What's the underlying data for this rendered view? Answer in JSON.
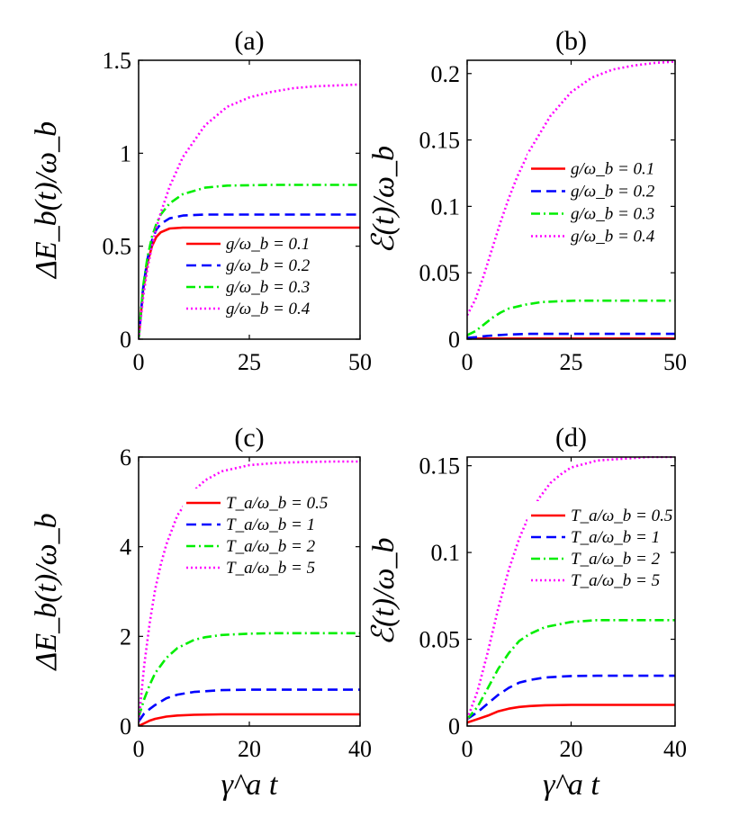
{
  "chart_data": [
    {
      "type": "line",
      "title": "(a)",
      "ylabel": "ΔE_b(t)/ω_b",
      "xlabel": "",
      "xlim": [
        0,
        50
      ],
      "ylim": [
        0,
        1.5
      ],
      "xticks": [
        "0",
        "25",
        "50"
      ],
      "yticks": [
        "0",
        "0.5",
        "1",
        "1.5"
      ],
      "legend_position": "bottom-right",
      "series": [
        {
          "name": "g/ω_b = 0.1",
          "color": "#ff0000",
          "dash": "solid",
          "x": [
            0,
            1,
            2,
            3,
            4,
            5,
            7,
            10,
            15,
            20,
            30,
            40,
            50
          ],
          "y": [
            0,
            0.26,
            0.41,
            0.5,
            0.55,
            0.575,
            0.595,
            0.6,
            0.6,
            0.6,
            0.6,
            0.6,
            0.6
          ]
        },
        {
          "name": "g/ω_b = 0.2",
          "color": "#0000ff",
          "dash": "dashed",
          "x": [
            0,
            1,
            2,
            3,
            4,
            5,
            7,
            10,
            15,
            20,
            30,
            40,
            50
          ],
          "y": [
            0,
            0.27,
            0.43,
            0.53,
            0.59,
            0.62,
            0.65,
            0.665,
            0.67,
            0.67,
            0.67,
            0.67,
            0.67
          ]
        },
        {
          "name": "g/ω_b = 0.3",
          "color": "#00ee00",
          "dash": "dashdot",
          "x": [
            0,
            1,
            2,
            3,
            4,
            5,
            7,
            10,
            15,
            20,
            30,
            40,
            50
          ],
          "y": [
            0,
            0.28,
            0.44,
            0.55,
            0.62,
            0.67,
            0.73,
            0.78,
            0.815,
            0.826,
            0.83,
            0.83,
            0.83
          ]
        },
        {
          "name": "g/ω_b = 0.4",
          "color": "#ff00ff",
          "dash": "dotted",
          "x": [
            0,
            1,
            2,
            3,
            4,
            5,
            7,
            10,
            15,
            20,
            25,
            30,
            35,
            40,
            45,
            50
          ],
          "y": [
            0,
            0.22,
            0.38,
            0.5,
            0.6,
            0.68,
            0.82,
            0.98,
            1.15,
            1.25,
            1.3,
            1.33,
            1.35,
            1.36,
            1.365,
            1.37
          ]
        }
      ]
    },
    {
      "type": "line",
      "title": "(b)",
      "ylabel": "ℰ(t)/ω_b",
      "xlabel": "",
      "xlim": [
        0,
        50
      ],
      "ylim": [
        0,
        0.21
      ],
      "xticks": [
        "0",
        "25",
        "50"
      ],
      "yticks": [
        "0",
        "0.05",
        "0.1",
        "0.15",
        "0.2"
      ],
      "legend_position": "middle-right",
      "series": [
        {
          "name": "g/ω_b = 0.1",
          "color": "#ff0000",
          "dash": "solid",
          "x": [
            0,
            10,
            20,
            30,
            40,
            50
          ],
          "y": [
            0.0005,
            0.0005,
            0.0005,
            0.0005,
            0.0005,
            0.0005
          ]
        },
        {
          "name": "g/ω_b = 0.2",
          "color": "#0000ff",
          "dash": "dashed",
          "x": [
            0,
            2,
            5,
            10,
            15,
            20,
            30,
            40,
            50
          ],
          "y": [
            0.001,
            0.0015,
            0.0025,
            0.0035,
            0.004,
            0.004,
            0.004,
            0.004,
            0.004
          ]
        },
        {
          "name": "g/ω_b = 0.3",
          "color": "#00ee00",
          "dash": "dashdot",
          "x": [
            0,
            2,
            4,
            6,
            8,
            10,
            14,
            18,
            22,
            26,
            30,
            40,
            50
          ],
          "y": [
            0.003,
            0.006,
            0.011,
            0.016,
            0.02,
            0.023,
            0.026,
            0.028,
            0.0285,
            0.029,
            0.029,
            0.029,
            0.029
          ]
        },
        {
          "name": "g/ω_b = 0.4",
          "color": "#ff00ff",
          "dash": "dotted",
          "x": [
            0,
            2,
            4,
            6,
            8,
            10,
            12,
            15,
            20,
            25,
            30,
            35,
            40,
            45,
            50
          ],
          "y": [
            0.018,
            0.03,
            0.048,
            0.068,
            0.088,
            0.106,
            0.122,
            0.142,
            0.168,
            0.186,
            0.197,
            0.203,
            0.206,
            0.208,
            0.209
          ]
        }
      ]
    },
    {
      "type": "line",
      "title": "(c)",
      "ylabel": "ΔE_b(t)/ω_b",
      "xlabel": "γ^a t",
      "xlim": [
        0,
        40
      ],
      "ylim": [
        0,
        6
      ],
      "xticks": [
        "0",
        "20",
        "40"
      ],
      "yticks": [
        "0",
        "2",
        "4",
        "6"
      ],
      "legend_position": "top-right",
      "series": [
        {
          "name": "T_a/ω_b = 0.5",
          "color": "#ff0000",
          "dash": "solid",
          "x": [
            0,
            1,
            2,
            3,
            5,
            7,
            10,
            15,
            20,
            30,
            40
          ],
          "y": [
            0,
            0.06,
            0.12,
            0.16,
            0.21,
            0.235,
            0.25,
            0.26,
            0.26,
            0.26,
            0.26
          ]
        },
        {
          "name": "T_a/ω_b = 1",
          "color": "#0000ff",
          "dash": "dashed",
          "x": [
            0,
            1,
            2,
            3,
            5,
            7,
            10,
            15,
            20,
            30,
            40
          ],
          "y": [
            0.1,
            0.28,
            0.38,
            0.47,
            0.62,
            0.7,
            0.76,
            0.8,
            0.81,
            0.81,
            0.81
          ]
        },
        {
          "name": "T_a/ω_b = 2",
          "color": "#00ee00",
          "dash": "dashdot",
          "x": [
            0,
            1,
            2,
            3,
            5,
            7,
            10,
            12,
            15,
            20,
            25,
            30,
            40
          ],
          "y": [
            0.2,
            0.6,
            0.92,
            1.18,
            1.52,
            1.74,
            1.92,
            1.98,
            2.03,
            2.06,
            2.07,
            2.07,
            2.07
          ]
        },
        {
          "name": "T_a/ω_b = 5",
          "color": "#ff00ff",
          "dash": "dotted",
          "x": [
            0,
            1,
            2,
            3,
            4,
            5,
            7,
            10,
            12,
            15,
            20,
            25,
            30,
            35,
            40
          ],
          "y": [
            0.1,
            1.35,
            2.3,
            3.05,
            3.6,
            4.05,
            4.7,
            5.25,
            5.48,
            5.68,
            5.82,
            5.87,
            5.89,
            5.9,
            5.9
          ]
        }
      ]
    },
    {
      "type": "line",
      "title": "(d)",
      "ylabel": "ℰ(t)/ω_b",
      "xlabel": "γ^a t",
      "xlim": [
        0,
        40
      ],
      "ylim": [
        0,
        0.155
      ],
      "xticks": [
        "0",
        "20",
        "40"
      ],
      "yticks": [
        "0",
        "0.05",
        "0.1",
        "0.15"
      ],
      "legend_position": "top-right",
      "series": [
        {
          "name": "T_a/ω_b = 0.5",
          "color": "#ff0000",
          "dash": "solid",
          "x": [
            0,
            2,
            4,
            6,
            8,
            10,
            12,
            15,
            20,
            30,
            40
          ],
          "y": [
            0.002,
            0.004,
            0.006,
            0.0085,
            0.01,
            0.011,
            0.0115,
            0.012,
            0.0122,
            0.0122,
            0.0122
          ]
        },
        {
          "name": "T_a/ω_b = 1",
          "color": "#0000ff",
          "dash": "dashed",
          "x": [
            0,
            2,
            4,
            6,
            8,
            10,
            12,
            15,
            20,
            25,
            30,
            40
          ],
          "y": [
            0.004,
            0.008,
            0.013,
            0.018,
            0.022,
            0.025,
            0.0265,
            0.028,
            0.0288,
            0.029,
            0.029,
            0.029
          ]
        },
        {
          "name": "T_a/ω_b = 2",
          "color": "#00ee00",
          "dash": "dashdot",
          "x": [
            0,
            2,
            4,
            6,
            8,
            10,
            12,
            15,
            20,
            25,
            30,
            40
          ],
          "y": [
            0.004,
            0.011,
            0.022,
            0.033,
            0.042,
            0.049,
            0.053,
            0.057,
            0.06,
            0.061,
            0.061,
            0.061
          ]
        },
        {
          "name": "T_a/ω_b = 5",
          "color": "#ff00ff",
          "dash": "dotted",
          "x": [
            0,
            2,
            4,
            6,
            8,
            10,
            12,
            14,
            16,
            18,
            20,
            25,
            30,
            35,
            40
          ],
          "y": [
            0.004,
            0.02,
            0.043,
            0.068,
            0.09,
            0.108,
            0.122,
            0.132,
            0.14,
            0.145,
            0.149,
            0.153,
            0.154,
            0.155,
            0.155
          ]
        }
      ]
    }
  ]
}
